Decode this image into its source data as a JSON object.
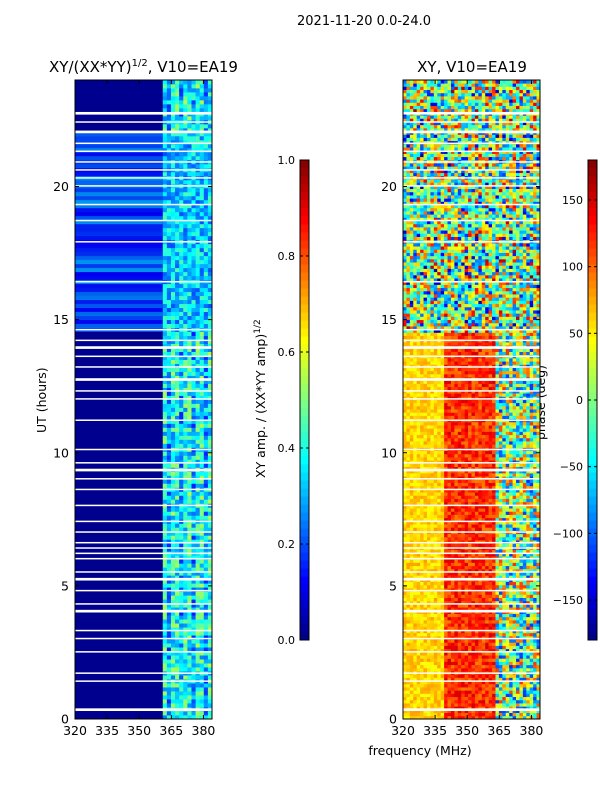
{
  "suptitle": "2021-11-20 0.0-24.0",
  "colors": {
    "background": "#ffffff",
    "ampl_base": "#00008f",
    "white_line": "#ffffff",
    "colormap": "jet"
  },
  "chart_data": [
    {
      "type": "heatmap",
      "title_main": "XY/(XX*YY)",
      "title_sup": "1/2",
      "title_tail": ", V10=EA19",
      "xlabel": "",
      "ylabel": "UT (hours)",
      "x_ticks": [
        320,
        335,
        350,
        365,
        380
      ],
      "x_tick_labels": [
        "320",
        "335",
        "350",
        "365",
        "380"
      ],
      "xlim": [
        320,
        384
      ],
      "y_ticks": [
        0,
        5,
        10,
        15,
        20
      ],
      "y_tick_labels": [
        "0",
        "5",
        "10",
        "15",
        "20"
      ],
      "ylim": [
        0,
        24
      ],
      "colorbar": {
        "label_main": "XY amp. / (XX*YY amp)",
        "label_sup": "1/2",
        "range": [
          0.0,
          1.0
        ],
        "ticks": [
          0.0,
          0.2,
          0.4,
          0.6,
          0.8,
          1.0
        ],
        "tick_labels": [
          "0.0",
          "0.2",
          "0.4",
          "0.6",
          "0.8",
          "1.0"
        ]
      },
      "value_range_observed": [
        0.0,
        0.55
      ],
      "band_low_freq": [
        320,
        361
      ],
      "band_high_freq": [
        361,
        384
      ]
    },
    {
      "type": "heatmap",
      "title": "XY, V10=EA19",
      "xlabel": "frequency (MHz)",
      "ylabel": "",
      "x_ticks": [
        320,
        335,
        350,
        365,
        380
      ],
      "x_tick_labels": [
        "320",
        "335",
        "350",
        "365",
        "380"
      ],
      "xlim": [
        320,
        384
      ],
      "y_ticks": [
        0,
        5,
        10,
        15,
        20
      ],
      "y_tick_labels": [
        "0",
        "5",
        "10",
        "15",
        "20"
      ],
      "ylim": [
        0,
        24
      ],
      "colorbar": {
        "label": "phase (deg)",
        "range": [
          -180,
          180
        ],
        "ticks": [
          -150,
          -100,
          -50,
          0,
          50,
          100,
          150
        ],
        "tick_labels": [
          "−150",
          "−100",
          "−50",
          "0",
          "50",
          "100",
          "150"
        ]
      }
    }
  ]
}
